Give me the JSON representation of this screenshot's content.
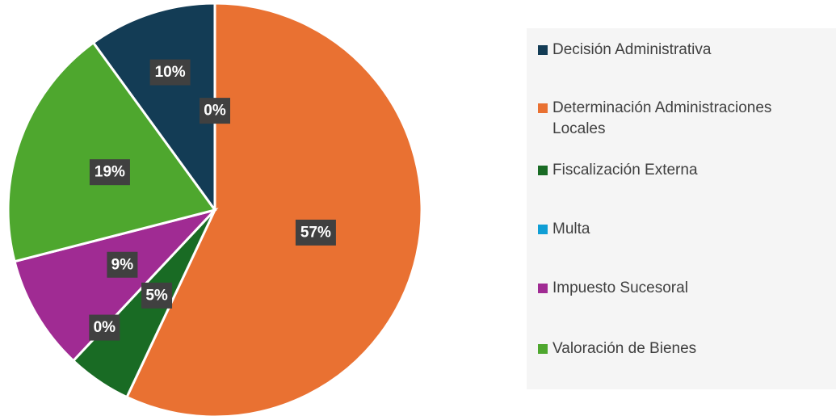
{
  "chart_data": {
    "type": "pie",
    "categories": [
      "Decisión Administrativa",
      null,
      "Determinación Administraciones Locales",
      "Fiscalización Externa",
      "Multa",
      "Impuesto Sucesoral",
      "Valoración de Bienes"
    ],
    "values": [
      10,
      0,
      57,
      5,
      0,
      9,
      19
    ],
    "value_labels": [
      "10%",
      "0%",
      "57%",
      "5%",
      "0%",
      "9%",
      "19%"
    ],
    "colors": [
      "#133c55",
      "#999999",
      "#e97132",
      "#196b24",
      "#0f9ed5",
      "#a02b93",
      "#4ea72e"
    ],
    "legend": "right"
  }
}
